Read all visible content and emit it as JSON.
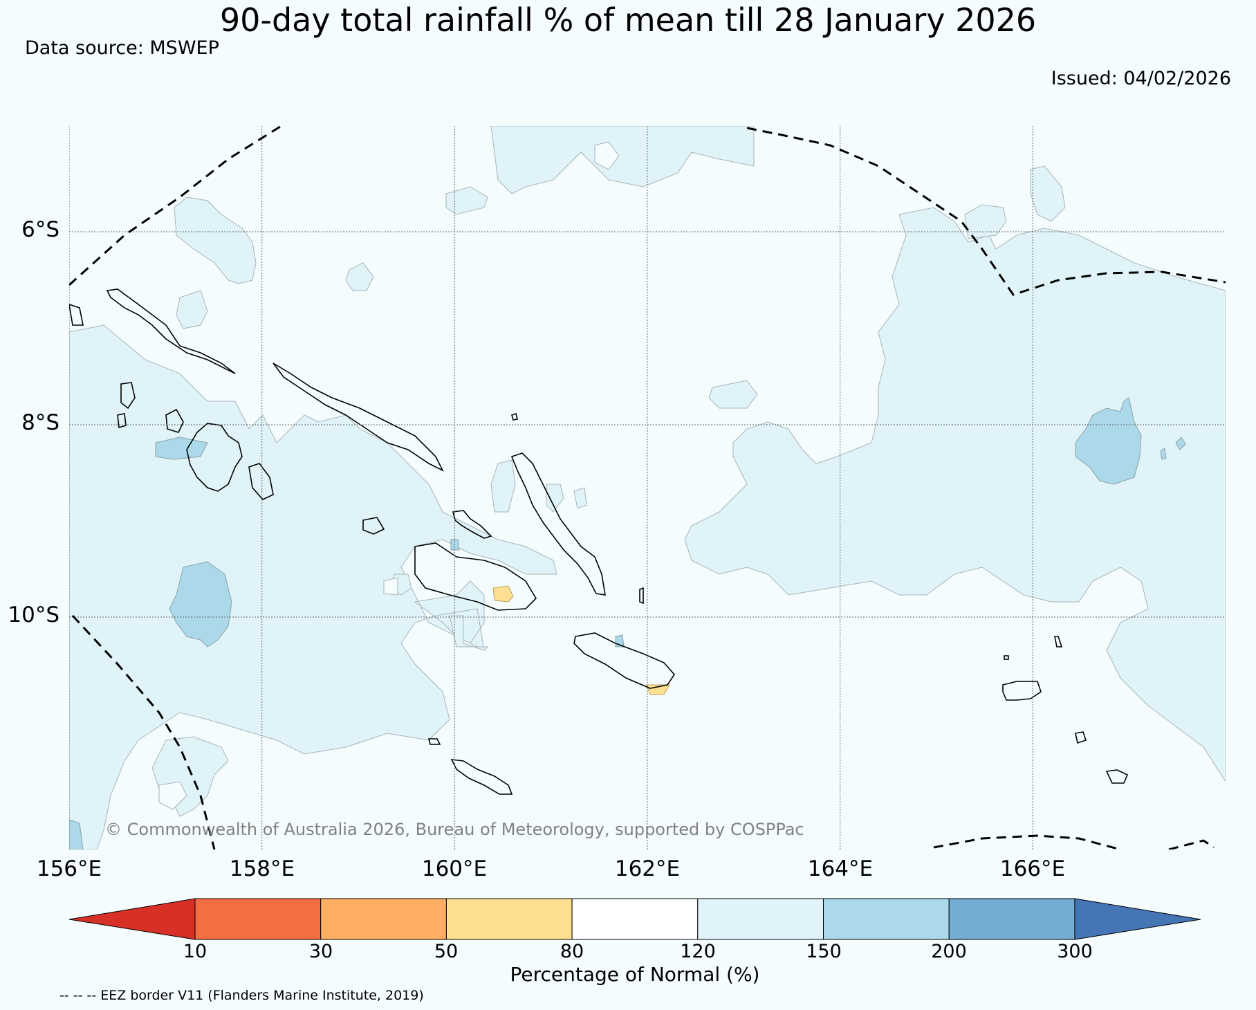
{
  "header": {
    "title": "90-day total rainfall % of mean till 28 January 2026",
    "source": "Data source: MSWEP",
    "issued": "Issued: 04/02/2026"
  },
  "map": {
    "lon_labels": [
      "156°E",
      "158°E",
      "160°E",
      "162°E",
      "164°E",
      "166°E"
    ],
    "lat_labels": [
      "6°S",
      "8°S",
      "10°S"
    ],
    "lon_range": [
      156,
      168
    ],
    "lat_range": [
      -4.9,
      -12.4
    ],
    "copyright": "© Commonwealth of Australia 2026, Bureau of Meteorology, supported by COSPPac"
  },
  "colorbar": {
    "ticks": [
      "10",
      "30",
      "50",
      "80",
      "120",
      "150",
      "200",
      "300"
    ],
    "colors": [
      "#d73027",
      "#f46d43",
      "#fdae61",
      "#fee090",
      "#ffffff",
      "#e0f3f8",
      "#abd9e9",
      "#74add1",
      "#4575b4"
    ],
    "label": "Percentage of Normal (%)"
  },
  "legend": {
    "eez_note": "-- -- -- EEZ border V11 (Flanders Marine Institute, 2019)"
  }
}
